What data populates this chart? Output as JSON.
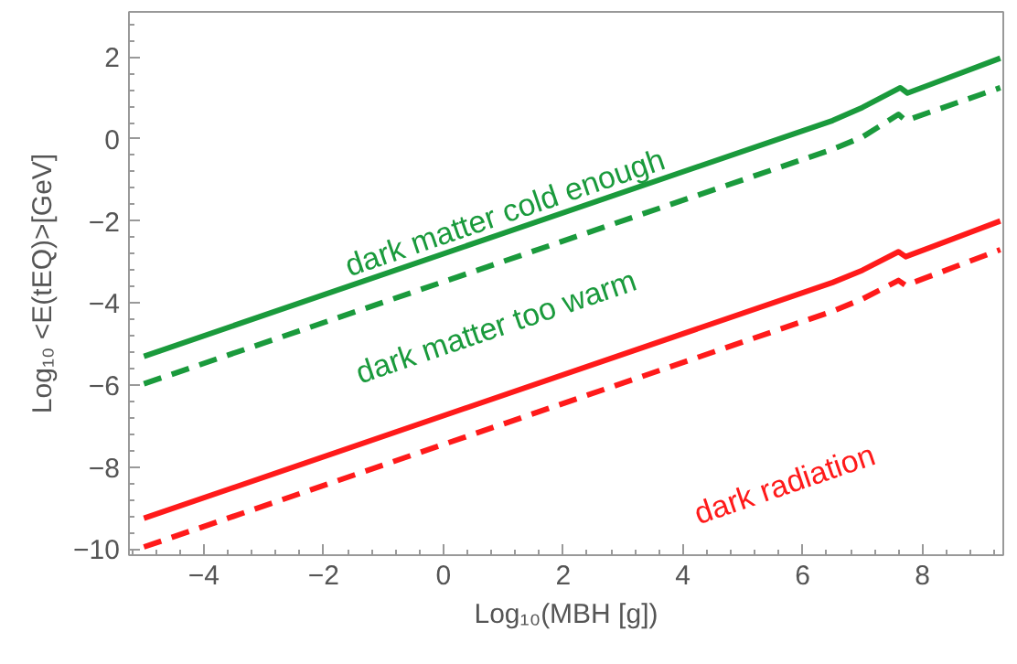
{
  "chart_data": {
    "type": "line",
    "xlabel": "Log₁₀(MBH [g])",
    "ylabel": "Log₁₀ <E(tEQ)>[GeV]",
    "xlim": [
      -5.25,
      9.35
    ],
    "ylim": [
      -10.15,
      3.1
    ],
    "xticks": [
      -4,
      -2,
      0,
      2,
      4,
      6,
      8
    ],
    "yticks": [
      -10,
      -8,
      -6,
      -4,
      -2,
      0,
      2
    ],
    "grid": false,
    "series": [
      {
        "color": "#1a9a3c",
        "line_style": "solid",
        "x": [
          -5,
          6.5,
          7.0,
          7.63,
          7.75,
          9.3
        ],
        "values": [
          -5.3,
          0.45,
          0.77,
          1.25,
          1.12,
          1.97
        ]
      },
      {
        "color": "#1a9a3c",
        "line_style": "dashed",
        "x": [
          -5,
          6.5,
          7.0,
          7.6,
          7.72,
          9.3
        ],
        "values": [
          -5.97,
          -0.25,
          0.05,
          0.6,
          0.45,
          1.25
        ]
      },
      {
        "color": "#ff1a1a",
        "line_style": "solid",
        "x": [
          -5,
          6.5,
          7.0,
          7.6,
          7.72,
          9.3
        ],
        "values": [
          -9.25,
          -3.5,
          -3.2,
          -2.75,
          -2.87,
          -2.0
        ]
      },
      {
        "color": "#ff1a1a",
        "line_style": "dashed",
        "x": [
          -5,
          6.5,
          7.0,
          7.6,
          7.72,
          9.3
        ],
        "values": [
          -9.95,
          -4.2,
          -3.9,
          -3.45,
          -3.57,
          -2.7
        ]
      }
    ],
    "annotations": [
      "dark matter cold enough",
      "dark matter too warm",
      "dark radiation"
    ]
  }
}
